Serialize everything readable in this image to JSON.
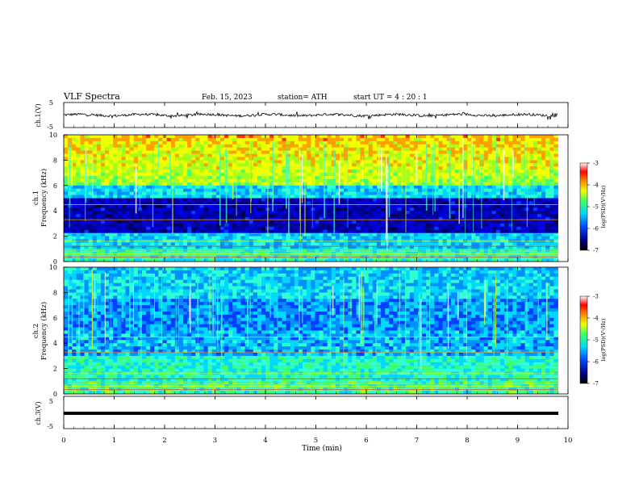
{
  "header": {
    "title": "VLF  Spectra",
    "date": "Feb. 15, 2023",
    "station": "station= ATH",
    "start": "start  UT  =   4  : 20 : 1"
  },
  "colors": {
    "spectrogram_scale": [
      "#000080",
      "#0000ff",
      "#00a0ff",
      "#00ffff",
      "#40ff80",
      "#ffff00",
      "#ff8000",
      "#ff0000",
      "#ffffff"
    ],
    "waveform": "#000000"
  },
  "chart_data": [
    {
      "type": "line",
      "name": "ch1-waveform",
      "ylabel": "ch.1(V)",
      "ylim": [
        -5,
        5
      ],
      "yticks": [
        "5",
        "-5"
      ],
      "x_range_min": [
        0,
        9.8
      ],
      "description_values": "noisy waveform centered near 0 V, amplitude about ±1 V"
    },
    {
      "type": "heatmap",
      "name": "ch1-spectrogram",
      "ylabel": "ch.1\nFrequency (kHz)",
      "ylabel_lines": [
        "ch.1",
        "Frequency  (kHz)"
      ],
      "ylim": [
        0,
        10
      ],
      "yticks": [
        "0",
        "2",
        "4",
        "6",
        "8",
        "10"
      ],
      "colorbar": {
        "label": "log(PSD)(V²/Hz)",
        "ticks": [
          "-3",
          "-4",
          "-5",
          "-6",
          "-7"
        ],
        "range": [
          -7,
          -3
        ]
      }
    },
    {
      "type": "heatmap",
      "name": "ch2-spectrogram",
      "ylabel_lines": [
        "ch.2",
        "Frequency  (kHz)"
      ],
      "ylim": [
        0,
        10
      ],
      "yticks": [
        "0",
        "2",
        "4",
        "6",
        "8",
        "10"
      ],
      "colorbar": {
        "label": "log(PSD)(V²/Hz)",
        "ticks": [
          "-3",
          "-4",
          "-5",
          "-6",
          "-7"
        ],
        "range": [
          -7,
          -3
        ]
      }
    },
    {
      "type": "line",
      "name": "ch3-waveform",
      "ylabel": "ch.3(V)",
      "ylim": [
        -5,
        5
      ],
      "yticks": [
        "5",
        "-5"
      ],
      "values_constant": -1.8
    }
  ],
  "xaxis": {
    "label": "Time  (min)",
    "ticks": [
      "0",
      "1",
      "2",
      "3",
      "4",
      "5",
      "6",
      "7",
      "8",
      "9",
      "10"
    ],
    "range": [
      0,
      10
    ],
    "data_end": 9.8
  }
}
